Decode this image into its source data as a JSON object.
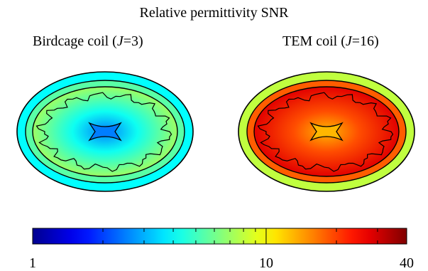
{
  "figure": {
    "title": "Relative permittivity SNR",
    "panels": [
      {
        "title_prefix": "Birdcage coil (",
        "title_var": "J",
        "title_suffix": "=3)"
      },
      {
        "title_prefix": "TEM coil (",
        "title_var": "J",
        "title_suffix": "=16)"
      }
    ]
  },
  "chart_data": {
    "type": "heatmap",
    "title": "Relative permittivity SNR",
    "panels": [
      {
        "title": "Birdcage coil (J=3)",
        "J": 3,
        "center_value": 2.5,
        "periphery_value": 7,
        "scalp_value": 4
      },
      {
        "title": "TEM coil (J=16)",
        "J": 16,
        "center_value": 13,
        "periphery_value": 28,
        "scalp_value": 8
      }
    ],
    "colorbar": {
      "scale": "log",
      "range": [
        1,
        40
      ],
      "ticks": [
        1,
        10,
        40
      ],
      "tick_labels": [
        "1",
        "10",
        "40"
      ],
      "minor_ticks": [
        2,
        3,
        4,
        5,
        6,
        7,
        8,
        9,
        20,
        30
      ],
      "colormap": "jet"
    }
  }
}
